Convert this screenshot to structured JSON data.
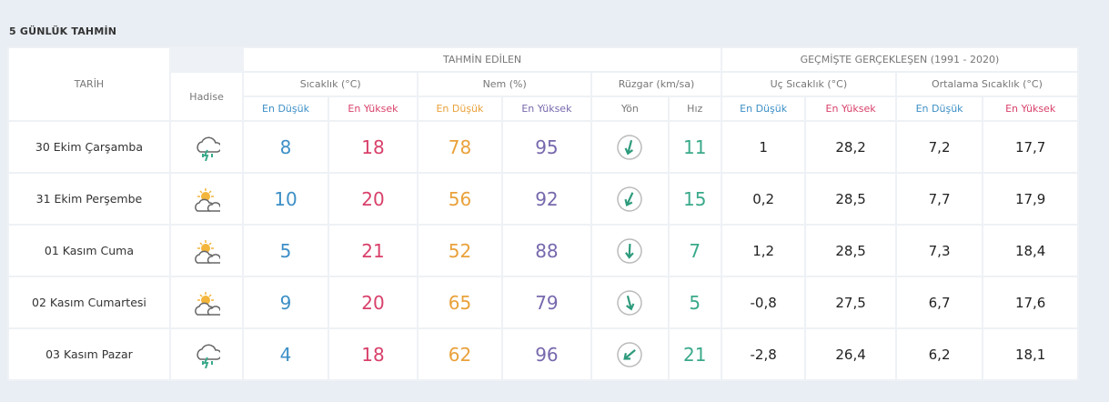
{
  "title": "5 GÜNLÜK TAHMİN",
  "header": {
    "date": "TARİH",
    "event": "Hadise",
    "forecast": "TAHMİN EDİLEN",
    "history": "GEÇMİŞTE GERÇEKLEŞEN (1991 - 2020)",
    "groups": [
      "Sıcaklık (°C)",
      "Nem (%)",
      "Rüzgar (km/sa)",
      "Uç Sıcaklık (°C)",
      "Ortalama Sıcaklık (°C)"
    ],
    "sub": [
      "En Düşük",
      "En Yüksek",
      "En Düşük",
      "En Yüksek",
      "Yön",
      "Hız",
      "En Düşük",
      "En Yüksek",
      "En Düşük",
      "En Yüksek"
    ]
  },
  "rows": [
    {
      "date": "30 Ekim Çarşamba",
      "values": [
        "8",
        "18",
        "78",
        "95",
        "11",
        "1",
        "28,2",
        "7,2",
        "17,7"
      ]
    },
    {
      "date": "31 Ekim Perşembe",
      "values": [
        "10",
        "20",
        "56",
        "92",
        "15",
        "0,2",
        "28,5",
        "7,7",
        "17,9"
      ]
    },
    {
      "date": "01 Kasım Cuma",
      "values": [
        "5",
        "21",
        "52",
        "88",
        "7",
        "1,2",
        "28,5",
        "7,3",
        "18,4"
      ]
    },
    {
      "date": "02 Kasım Cumartesi",
      "values": [
        "9",
        "20",
        "65",
        "79",
        "5",
        "-0,8",
        "27,5",
        "6,7",
        "17,6"
      ]
    },
    {
      "date": "03 Kasım Pazar",
      "values": [
        "4",
        "18",
        "62",
        "96",
        "21",
        "-2,8",
        "26,4",
        "6,2",
        "18,1"
      ]
    }
  ]
}
